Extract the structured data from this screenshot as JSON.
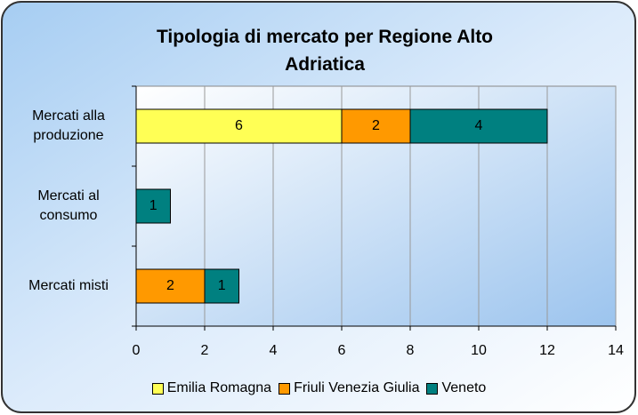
{
  "chart_data": {
    "type": "bar",
    "orientation": "horizontal",
    "stacked": true,
    "title": "Tipologia di mercato per Regione Alto Adriatica",
    "categories": [
      "Mercati alla produzione",
      "Mercati al consumo",
      "Mercati misti"
    ],
    "series": [
      {
        "name": "Emilia Romagna",
        "color": "#ffff55",
        "values": [
          6,
          null,
          null
        ]
      },
      {
        "name": "Friuli Venezia Giulia",
        "color": "#ff9900",
        "values": [
          2,
          null,
          2
        ]
      },
      {
        "name": "Veneto",
        "color": "#008080",
        "values": [
          4,
          1,
          1
        ]
      }
    ],
    "xlim": [
      0,
      14
    ],
    "xticks": [
      0,
      2,
      4,
      6,
      8,
      10,
      12,
      14
    ],
    "grid": true,
    "legend": "bottom"
  }
}
